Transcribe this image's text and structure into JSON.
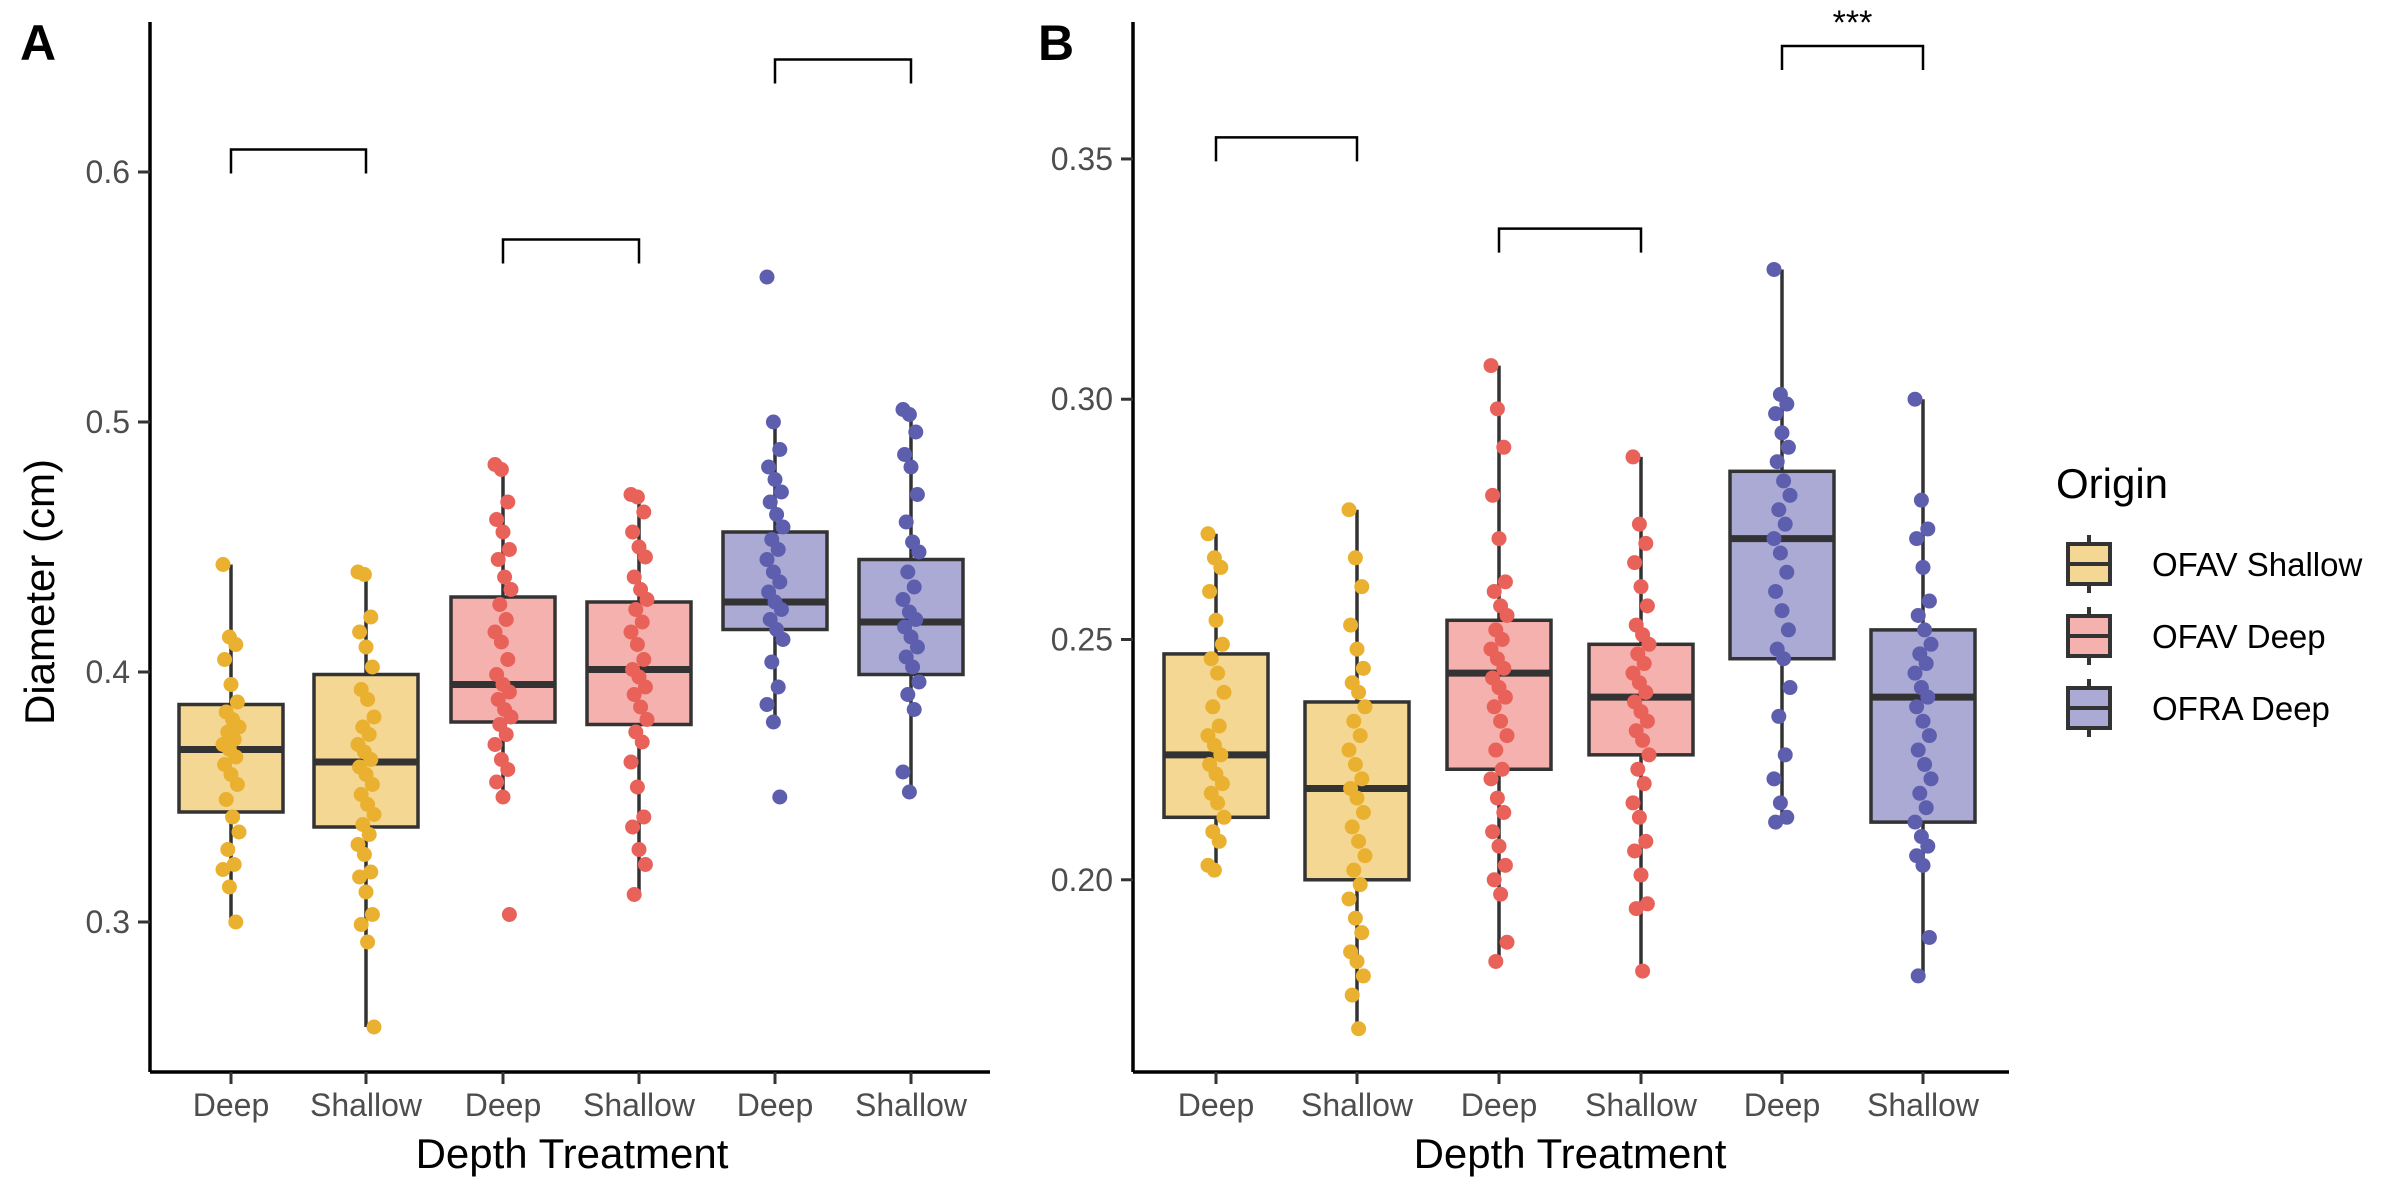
{
  "legend": {
    "title": "Origin",
    "entries": [
      {
        "label": "OFAV Shallow",
        "fill": "#f5d794",
        "point": "#eab030"
      },
      {
        "label": "OFAV Deep",
        "fill": "#f5b1ad",
        "point": "#e8625a"
      },
      {
        "label": "OFRA Deep",
        "fill": "#aaaad4",
        "point": "#5e5eae"
      }
    ]
  },
  "chart_data": [
    {
      "panel": "A",
      "type": "box",
      "xlabel": "Depth Treatment",
      "ylabel": "Diameter (cm)",
      "ylim": [
        0.24,
        0.66
      ],
      "yticks": [
        0.3,
        0.4,
        0.5,
        0.6
      ],
      "ytick_labels": [
        "0.3",
        "0.4",
        "0.5",
        "0.6"
      ],
      "categories": [
        "Deep",
        "Shallow",
        "Deep",
        "Shallow",
        "Deep",
        "Shallow"
      ],
      "boxes": [
        {
          "origin": "OFAV Shallow",
          "treatment": "Deep",
          "whisker_low": 0.3,
          "q1": 0.344,
          "median": 0.369,
          "q3": 0.387,
          "whisker_high": 0.443,
          "points": [
            0.443,
            0.414,
            0.411,
            0.405,
            0.395,
            0.388,
            0.384,
            0.381,
            0.378,
            0.376,
            0.373,
            0.371,
            0.369,
            0.366,
            0.363,
            0.359,
            0.355,
            0.349,
            0.342,
            0.336,
            0.329,
            0.323,
            0.321,
            0.314,
            0.3
          ]
        },
        {
          "origin": "OFAV Shallow",
          "treatment": "Shallow",
          "whisker_low": 0.258,
          "q1": 0.338,
          "median": 0.364,
          "q3": 0.399,
          "whisker_high": 0.44,
          "points": [
            0.44,
            0.439,
            0.422,
            0.416,
            0.41,
            0.402,
            0.393,
            0.389,
            0.382,
            0.378,
            0.375,
            0.371,
            0.368,
            0.365,
            0.362,
            0.359,
            0.355,
            0.351,
            0.347,
            0.343,
            0.339,
            0.335,
            0.331,
            0.327,
            0.32,
            0.318,
            0.312,
            0.303,
            0.299,
            0.292,
            0.258
          ]
        },
        {
          "origin": "OFAV Deep",
          "treatment": "Deep",
          "whisker_low": 0.35,
          "q1": 0.38,
          "median": 0.395,
          "q3": 0.43,
          "whisker_high": 0.483,
          "points": [
            0.483,
            0.481,
            0.468,
            0.461,
            0.456,
            0.449,
            0.445,
            0.438,
            0.433,
            0.427,
            0.421,
            0.416,
            0.412,
            0.405,
            0.399,
            0.395,
            0.392,
            0.389,
            0.385,
            0.382,
            0.379,
            0.375,
            0.371,
            0.365,
            0.361,
            0.356,
            0.35,
            0.303
          ]
        },
        {
          "origin": "OFAV Deep",
          "treatment": "Shallow",
          "whisker_low": 0.311,
          "q1": 0.379,
          "median": 0.401,
          "q3": 0.428,
          "whisker_high": 0.471,
          "points": [
            0.471,
            0.47,
            0.464,
            0.456,
            0.45,
            0.446,
            0.438,
            0.433,
            0.429,
            0.425,
            0.42,
            0.416,
            0.411,
            0.405,
            0.401,
            0.398,
            0.394,
            0.391,
            0.386,
            0.381,
            0.376,
            0.372,
            0.364,
            0.354,
            0.342,
            0.338,
            0.329,
            0.323,
            0.311
          ]
        },
        {
          "origin": "OFRA Deep",
          "treatment": "Deep",
          "whisker_low": 0.38,
          "q1": 0.417,
          "median": 0.428,
          "q3": 0.456,
          "whisker_high": 0.5,
          "points": [
            0.558,
            0.5,
            0.489,
            0.482,
            0.477,
            0.472,
            0.468,
            0.463,
            0.458,
            0.453,
            0.449,
            0.445,
            0.44,
            0.436,
            0.432,
            0.428,
            0.425,
            0.421,
            0.417,
            0.413,
            0.404,
            0.394,
            0.387,
            0.38,
            0.35
          ]
        },
        {
          "origin": "OFRA Deep",
          "treatment": "Shallow",
          "whisker_low": 0.352,
          "q1": 0.399,
          "median": 0.42,
          "q3": 0.445,
          "whisker_high": 0.505,
          "points": [
            0.505,
            0.503,
            0.496,
            0.487,
            0.482,
            0.471,
            0.46,
            0.452,
            0.448,
            0.44,
            0.434,
            0.429,
            0.424,
            0.421,
            0.418,
            0.414,
            0.41,
            0.406,
            0.402,
            0.396,
            0.391,
            0.385,
            0.36,
            0.352
          ]
        }
      ],
      "comparisons": [
        {
          "groups": [
            0,
            1
          ],
          "y": 0.609,
          "label": ""
        },
        {
          "groups": [
            2,
            3
          ],
          "y": 0.573,
          "label": ""
        },
        {
          "groups": [
            4,
            5
          ],
          "y": 0.645,
          "label": ""
        }
      ]
    },
    {
      "panel": "B",
      "type": "box",
      "xlabel": "Depth Treatment",
      "ylabel": "",
      "ylim": [
        0.16,
        0.3785
      ],
      "yticks": [
        0.2,
        0.25,
        0.3,
        0.35
      ],
      "ytick_labels": [
        "0.20",
        "0.25",
        "0.30",
        "0.35"
      ],
      "categories": [
        "Deep",
        "Shallow",
        "Deep",
        "Shallow",
        "Deep",
        "Shallow"
      ],
      "boxes": [
        {
          "origin": "OFAV Shallow",
          "treatment": "Deep",
          "whisker_low": 0.202,
          "q1": 0.213,
          "median": 0.226,
          "q3": 0.247,
          "whisker_high": 0.272,
          "points": [
            0.272,
            0.267,
            0.265,
            0.26,
            0.254,
            0.249,
            0.246,
            0.243,
            0.239,
            0.236,
            0.232,
            0.23,
            0.228,
            0.226,
            0.224,
            0.222,
            0.22,
            0.218,
            0.216,
            0.213,
            0.21,
            0.208,
            0.203,
            0.202
          ]
        },
        {
          "origin": "OFAV Shallow",
          "treatment": "Shallow",
          "whisker_low": 0.169,
          "q1": 0.2,
          "median": 0.219,
          "q3": 0.237,
          "whisker_high": 0.277,
          "points": [
            0.277,
            0.267,
            0.261,
            0.253,
            0.248,
            0.244,
            0.241,
            0.239,
            0.236,
            0.233,
            0.23,
            0.227,
            0.224,
            0.221,
            0.219,
            0.217,
            0.214,
            0.211,
            0.208,
            0.205,
            0.202,
            0.199,
            0.196,
            0.192,
            0.189,
            0.185,
            0.183,
            0.18,
            0.176,
            0.169
          ]
        },
        {
          "origin": "OFAV Deep",
          "treatment": "Deep",
          "whisker_low": 0.183,
          "q1": 0.223,
          "median": 0.243,
          "q3": 0.254,
          "whisker_high": 0.307,
          "points": [
            0.307,
            0.298,
            0.29,
            0.28,
            0.271,
            0.262,
            0.26,
            0.257,
            0.255,
            0.252,
            0.25,
            0.248,
            0.246,
            0.244,
            0.242,
            0.24,
            0.238,
            0.236,
            0.233,
            0.23,
            0.227,
            0.223,
            0.221,
            0.217,
            0.214,
            0.21,
            0.207,
            0.203,
            0.2,
            0.197,
            0.187,
            0.183
          ]
        },
        {
          "origin": "OFAV Deep",
          "treatment": "Shallow",
          "whisker_low": 0.181,
          "q1": 0.226,
          "median": 0.238,
          "q3": 0.249,
          "whisker_high": 0.288,
          "points": [
            0.288,
            0.274,
            0.27,
            0.266,
            0.261,
            0.257,
            0.253,
            0.251,
            0.249,
            0.247,
            0.245,
            0.243,
            0.241,
            0.239,
            0.237,
            0.235,
            0.233,
            0.231,
            0.229,
            0.226,
            0.223,
            0.22,
            0.216,
            0.213,
            0.208,
            0.206,
            0.201,
            0.195,
            0.194,
            0.181
          ]
        },
        {
          "origin": "OFRA Deep",
          "treatment": "Deep",
          "whisker_low": 0.212,
          "q1": 0.246,
          "median": 0.271,
          "q3": 0.285,
          "whisker_high": 0.327,
          "points": [
            0.327,
            0.301,
            0.299,
            0.297,
            0.293,
            0.29,
            0.287,
            0.283,
            0.28,
            0.277,
            0.274,
            0.271,
            0.268,
            0.264,
            0.26,
            0.256,
            0.252,
            0.248,
            0.246,
            0.24,
            0.234,
            0.226,
            0.221,
            0.216,
            0.213,
            0.212
          ]
        },
        {
          "origin": "OFRA Deep",
          "treatment": "Shallow",
          "whisker_low": 0.18,
          "q1": 0.212,
          "median": 0.238,
          "q3": 0.252,
          "whisker_high": 0.3,
          "points": [
            0.3,
            0.279,
            0.273,
            0.271,
            0.265,
            0.258,
            0.255,
            0.252,
            0.249,
            0.247,
            0.245,
            0.243,
            0.24,
            0.238,
            0.236,
            0.233,
            0.23,
            0.227,
            0.224,
            0.221,
            0.218,
            0.215,
            0.212,
            0.209,
            0.207,
            0.205,
            0.203,
            0.188,
            0.18
          ]
        }
      ],
      "comparisons": [
        {
          "groups": [
            0,
            1
          ],
          "y": 0.3545,
          "label": ""
        },
        {
          "groups": [
            2,
            3
          ],
          "y": 0.3355,
          "label": ""
        },
        {
          "groups": [
            4,
            5
          ],
          "y": 0.3735,
          "label": "***"
        }
      ]
    }
  ]
}
